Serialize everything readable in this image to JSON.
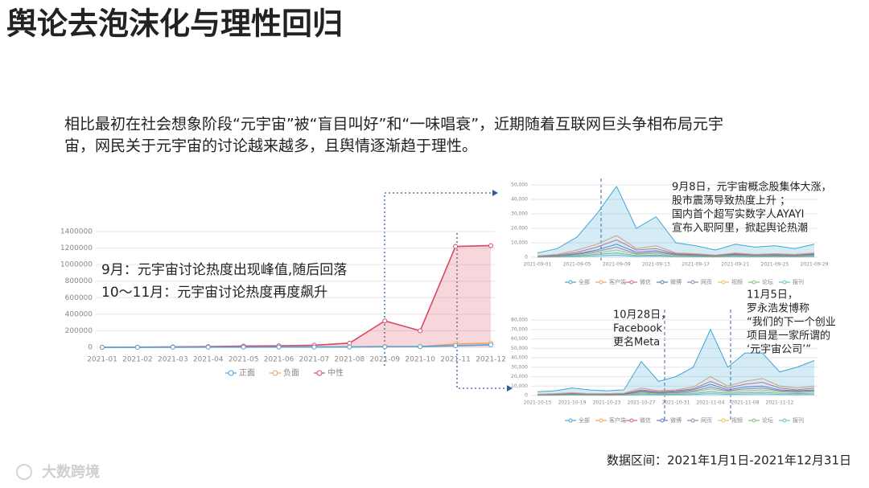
{
  "title": "舆论去泡沫化与理性回归",
  "body": [
    "相比最初在社会想象阶段“元宇宙”被“盲目叫好”和“一味唱衰”，近期随着互联网巨头争相布局元宇",
    "宙，网民关于元宇宙的讨论越来越多，且舆情逐渐趋于理性。"
  ],
  "note": "数据区间：2021年1月1日-2021年12月31日",
  "watermark": "大数跨境",
  "chart_data": [
    {
      "type": "line",
      "categories": [
        "2021-01",
        "2021-02",
        "2021-03",
        "2021-04",
        "2021-05",
        "2021-06",
        "2021-07",
        "2021-08",
        "2021-09",
        "2021-10",
        "2021-11",
        "2021-12"
      ],
      "series": [
        {
          "name": "正面",
          "color": "#4fa3d9",
          "values": [
            0,
            500,
            1000,
            1500,
            2000,
            2500,
            3000,
            4000,
            6000,
            8000,
            20000,
            30000
          ]
        },
        {
          "name": "负面",
          "color": "#f0a35e",
          "values": [
            0,
            800,
            1500,
            2500,
            3000,
            3500,
            4000,
            5000,
            10000,
            8000,
            40000,
            50000
          ]
        },
        {
          "name": "中性",
          "color": "#d9485f",
          "area": true,
          "values": [
            0,
            2000,
            5000,
            8000,
            15000,
            18000,
            25000,
            50000,
            320000,
            200000,
            1220000,
            1230000
          ]
        }
      ],
      "ylim": [
        0,
        1400000
      ],
      "yticks": [
        0,
        200000,
        400000,
        600000,
        800000,
        1000000,
        1200000,
        1400000
      ],
      "markers": true,
      "annotations": [
        {
          "lines": [
            "9月：元宇宙讨论热度出现峰值,随后回落"
          ]
        },
        {
          "lines": [
            "10～11月：元宇宙讨论热度再度飙升"
          ]
        }
      ]
    },
    {
      "type": "line",
      "categories": [
        "2021-09-01",
        null,
        "2021-09-05",
        null,
        "2021-09-09",
        null,
        "2021-09-13",
        null,
        "2021-09-17",
        null,
        "2021-09-21",
        null,
        "2021-09-25",
        null,
        "2021-09-29"
      ],
      "series": [
        {
          "name": "全部",
          "color": "#3fa7d6",
          "area": true,
          "values": [
            3000,
            6000,
            14000,
            30000,
            49000,
            20000,
            28000,
            10000,
            8000,
            5000,
            9000,
            7000,
            8000,
            6000,
            9000
          ]
        },
        {
          "name": "客户端",
          "color": "#f0a35e",
          "values": [
            1000,
            2000,
            5000,
            9000,
            15000,
            6000,
            8000,
            3000,
            2500,
            1500,
            3000,
            2000,
            2500,
            2000,
            3000
          ]
        },
        {
          "name": "微信",
          "color": "#e0607e",
          "values": [
            800,
            1500,
            3500,
            7000,
            12000,
            5000,
            6000,
            2500,
            2000,
            1200,
            2500,
            1800,
            2000,
            1500,
            2500
          ]
        },
        {
          "name": "微博",
          "color": "#5b7fb5",
          "values": [
            500,
            1000,
            2500,
            5000,
            9000,
            3500,
            4500,
            2000,
            1500,
            1000,
            2000,
            1500,
            1500,
            1200,
            2000
          ]
        },
        {
          "name": "网页",
          "color": "#9a7fb0",
          "values": [
            400,
            800,
            2000,
            4000,
            7000,
            2500,
            3500,
            1500,
            1200,
            800,
            1500,
            1200,
            1200,
            1000,
            1500
          ]
        },
        {
          "name": "视频",
          "color": "#e8c05a",
          "values": [
            300,
            600,
            1500,
            3000,
            5000,
            2000,
            2500,
            1000,
            900,
            600,
            1200,
            900,
            900,
            700,
            1200
          ]
        },
        {
          "name": "论坛",
          "color": "#7ac47a",
          "values": [
            200,
            400,
            1000,
            2000,
            3000,
            1200,
            1500,
            700,
            600,
            400,
            800,
            600,
            600,
            500,
            800
          ]
        },
        {
          "name": "报刊",
          "color": "#6bbfcf",
          "values": [
            100,
            200,
            500,
            1000,
            1500,
            600,
            800,
            400,
            300,
            200,
            400,
            300,
            300,
            300,
            400
          ]
        }
      ],
      "ylim": [
        0,
        50000
      ],
      "yticks": [
        0,
        {
          "value": 10000,
          "label": "10,000"
        },
        {
          "value": 20000,
          "label": "20,000"
        },
        {
          "value": 30000,
          "label": "30,000"
        },
        {
          "value": 40000,
          "label": "40,000"
        },
        {
          "value": 50000,
          "label": "50,000"
        }
      ],
      "annotations": [
        {
          "lines": [
            "9月8日，元宇宙概念股集体大涨，",
            "股市震荡导致热度上升 ；",
            "国内首个超写实数字人AYAYI",
            "宣布入职阿里，掀起舆论热潮"
          ]
        }
      ]
    },
    {
      "type": "line",
      "categories": [
        "2021-10-15",
        null,
        "2021-10-19",
        null,
        "2021-10-23",
        null,
        "2021-10-27",
        null,
        "2021-10-31",
        null,
        "2021-11-04",
        null,
        "2021-11-08",
        null,
        "2021-11-12",
        null,
        null
      ],
      "series": [
        {
          "name": "全部",
          "color": "#3fa7d6",
          "area": true,
          "values": [
            4000,
            5000,
            8000,
            6000,
            5000,
            6000,
            36000,
            15000,
            20000,
            30000,
            70000,
            30000,
            45000,
            45000,
            25000,
            30000,
            37000
          ]
        },
        {
          "name": "客户端",
          "color": "#f0a35e",
          "values": [
            1500,
            2000,
            3000,
            2000,
            2000,
            2500,
            8000,
            5000,
            6000,
            9000,
            20000,
            10000,
            15000,
            18000,
            10000,
            8000,
            10000
          ]
        },
        {
          "name": "微信",
          "color": "#e0607e",
          "values": [
            1200,
            1500,
            2500,
            1800,
            1500,
            2000,
            6000,
            4000,
            5000,
            7000,
            15000,
            8000,
            12000,
            14000,
            8000,
            6000,
            8000
          ]
        },
        {
          "name": "微博",
          "color": "#5b7fb5",
          "values": [
            1000,
            1200,
            2000,
            1500,
            1200,
            1500,
            5000,
            3000,
            4000,
            6000,
            12000,
            6000,
            9000,
            10000,
            6000,
            5000,
            6000
          ]
        },
        {
          "name": "网页",
          "color": "#9a7fb0",
          "values": [
            800,
            1000,
            1500,
            1200,
            1000,
            1200,
            4000,
            2500,
            3000,
            4500,
            9000,
            5000,
            7000,
            8000,
            5000,
            4000,
            5000
          ]
        },
        {
          "name": "视频",
          "color": "#e8c05a",
          "values": [
            600,
            800,
            1200,
            1000,
            800,
            1000,
            3000,
            2000,
            2500,
            3500,
            7000,
            4000,
            5000,
            6000,
            4000,
            3000,
            4000
          ]
        },
        {
          "name": "论坛",
          "color": "#7ac47a",
          "values": [
            400,
            500,
            800,
            600,
            500,
            600,
            2000,
            1200,
            1500,
            2000,
            4000,
            2500,
            3000,
            3500,
            2500,
            2000,
            2500
          ]
        },
        {
          "name": "报刊",
          "color": "#6bbfcf",
          "values": [
            200,
            300,
            400,
            300,
            300,
            300,
            1000,
            600,
            800,
            1000,
            2000,
            1200,
            1500,
            1800,
            1200,
            1000,
            1200
          ]
        }
      ],
      "ylim": [
        0,
        80000
      ],
      "yticks": [
        0,
        {
          "value": 10000,
          "label": "10,000"
        },
        {
          "value": 20000,
          "label": "20,000"
        },
        {
          "value": 30000,
          "label": "30,000"
        },
        {
          "value": 40000,
          "label": "40,000"
        },
        {
          "value": 50000,
          "label": "50,000"
        },
        {
          "value": 60000,
          "label": "60,000"
        },
        {
          "value": 70000,
          "label": "70,000"
        },
        {
          "value": 80000,
          "label": "80,000"
        }
      ],
      "annotations": [
        {
          "lines": [
            "10月28日，",
            "Facebook",
            "更名Meta"
          ]
        },
        {
          "lines": [
            "11月5日，",
            "罗永浩发博称",
            "“我们的下一个创业",
            "项目是一家所谓的",
            "‘元宇宙公司’”"
          ]
        }
      ]
    }
  ]
}
